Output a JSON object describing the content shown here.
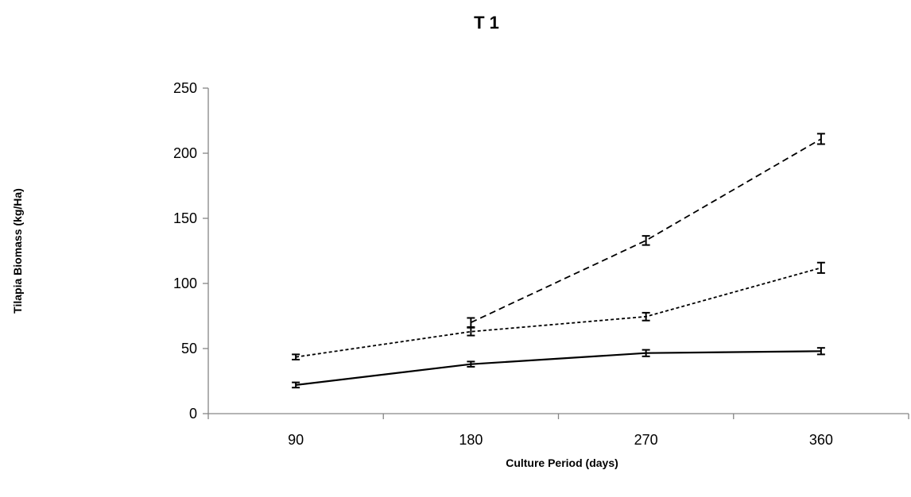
{
  "chart_data": {
    "type": "line",
    "title": "T 1",
    "xlabel": "Culture Period (days)",
    "ylabel": "Tilapia Biomass (kg/Ha)",
    "categories": [
      "90",
      "180",
      "270",
      "360"
    ],
    "ylim": [
      0,
      250
    ],
    "yticks": [
      0,
      50,
      100,
      150,
      200,
      250
    ],
    "grid": false,
    "legend": "none",
    "series": [
      {
        "line_style": "solid",
        "color": "#000000",
        "values": [
          22,
          38,
          46.5,
          48
        ],
        "errors": [
          2,
          2,
          2.5,
          2.5
        ]
      },
      {
        "line_style": "dotted",
        "color": "#000000",
        "values": [
          43.5,
          63,
          74.5,
          112
        ],
        "errors": [
          2,
          3,
          3,
          4
        ]
      },
      {
        "line_style": "dashed",
        "color": "#000000",
        "values": [
          null,
          70,
          133,
          211
        ],
        "errors": [
          null,
          3.5,
          3.5,
          4
        ]
      }
    ]
  }
}
